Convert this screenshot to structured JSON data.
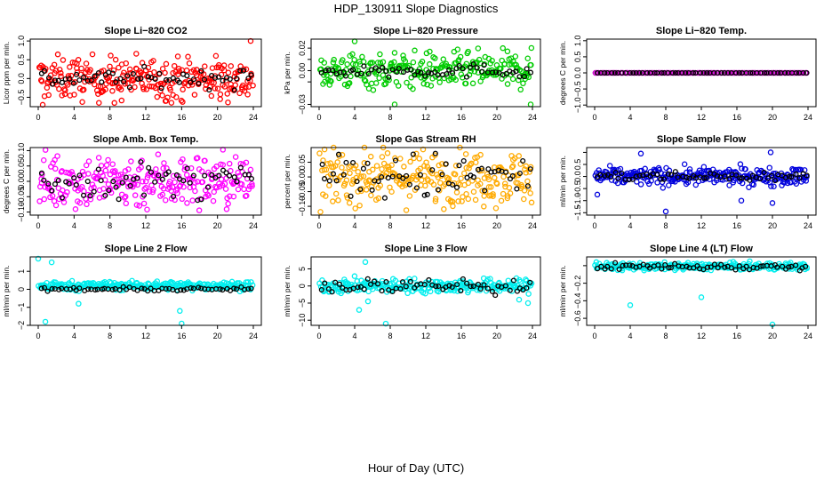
{
  "figure": {
    "title": "HDP_130911  Slope Diagnostics",
    "xlabel": "Hour of Day (UTC)"
  },
  "chart_data": [
    {
      "type": "scatter",
      "title": "Slope Li−820 CO2",
      "ylabel": "Licor ppm per min.",
      "color": "#ff0000",
      "xlim": [
        0,
        24
      ],
      "ylim": [
        -0.75,
        1.05
      ],
      "yticks": [
        -0.5,
        0.0,
        0.5,
        1.0
      ],
      "ytick_labels": [
        "−0.5",
        "0.0",
        "0.5",
        "1.0"
      ],
      "series_center": 0.0,
      "series_spread": 0.28,
      "outliers": [
        [
          23.7,
          1.0
        ],
        [
          0.5,
          -0.7
        ],
        [
          8.5,
          -0.65
        ],
        [
          14.2,
          -0.6
        ],
        [
          20.3,
          -0.55
        ]
      ],
      "black_center": 0.0,
      "black_spread": 0.12
    },
    {
      "type": "scatter",
      "title": "Slope Li−820 Pressure",
      "ylabel": "kPa per min.",
      "color": "#00cc00",
      "xlim": [
        0,
        24
      ],
      "ylim": [
        -0.032,
        0.028
      ],
      "yticks": [
        -0.03,
        -0.01,
        0.0,
        0.01,
        0.02
      ],
      "ytick_labels": [
        "−0.03",
        "",
        "0.00",
        "",
        "0.02"
      ],
      "series_center": 0.0,
      "series_spread": 0.008,
      "outliers": [
        [
          8.5,
          -0.03
        ],
        [
          23.8,
          -0.03
        ],
        [
          4.0,
          0.026
        ]
      ],
      "black_center": 0.0,
      "black_spread": 0.003
    },
    {
      "type": "scatter",
      "title": "Slope Li−820 Temp.",
      "ylabel": "degrees C per min.",
      "color": "#cc00cc",
      "xlim": [
        0,
        24
      ],
      "ylim": [
        -1.05,
        1.05
      ],
      "yticks": [
        -1.0,
        -0.5,
        0.0,
        0.5,
        1.0
      ],
      "ytick_labels": [
        "−1.0",
        "−0.5",
        "0.0",
        "0.5",
        "1.0"
      ],
      "series_center": 0.0,
      "series_spread": 0.0,
      "outliers": [],
      "black_center": 0.0,
      "black_spread": 0.0
    },
    {
      "type": "scatter",
      "title": "Slope Amb. Box Temp.",
      "ylabel": "degrees C per min.",
      "color": "#ff00ff",
      "xlim": [
        0,
        24
      ],
      "ylim": [
        -0.11,
        0.11
      ],
      "yticks": [
        -0.1,
        -0.05,
        0.0,
        0.05,
        0.1
      ],
      "ytick_labels": [
        "−0.10",
        "−0.05",
        "0.00",
        "0.05",
        "0.10"
      ],
      "series_center": 0.0,
      "series_spread": 0.045,
      "outliers": [],
      "black_center": 0.0,
      "black_spread": 0.03
    },
    {
      "type": "scatter",
      "title": "Slope Gas Stream RH",
      "ylabel": "percent per min.",
      "color": "#ffaa00",
      "xlim": [
        0,
        24
      ],
      "ylim": [
        -0.13,
        0.1
      ],
      "yticks": [
        -0.1,
        -0.05,
        0.0,
        0.05
      ],
      "ytick_labels": [
        "−0.10",
        "−0.05",
        "0.00",
        "0.05"
      ],
      "series_center": 0.0,
      "series_spread": 0.045,
      "outliers": [],
      "black_center": 0.0,
      "black_spread": 0.04
    },
    {
      "type": "scatter",
      "title": "Slope Sample Flow",
      "ylabel": "ml/min per min.",
      "color": "#0000dd",
      "xlim": [
        0,
        24
      ],
      "ylim": [
        -1.6,
        1.2
      ],
      "yticks": [
        -1.5,
        -1.0,
        -0.5,
        0.0,
        0.5,
        1.0
      ],
      "ytick_labels": [
        "−1.5",
        "−1.0",
        "−0.5",
        "0.0",
        "0.5",
        ""
      ],
      "series_center": 0.0,
      "series_spread": 0.18,
      "outliers": [
        [
          8.0,
          -1.45
        ],
        [
          5.2,
          0.95
        ],
        [
          19.8,
          1.0
        ],
        [
          16.5,
          -1.0
        ],
        [
          20.0,
          -1.1
        ],
        [
          0.3,
          -0.75
        ]
      ],
      "black_center": 0.0,
      "black_spread": 0.1
    },
    {
      "type": "scatter",
      "title": "Slope Line 2 Flow",
      "ylabel": "ml/min per min.",
      "color": "#00eeee",
      "xlim": [
        0,
        24
      ],
      "ylim": [
        -2.0,
        1.8
      ],
      "yticks": [
        -2,
        -1,
        0,
        1
      ],
      "ytick_labels": [
        "−2",
        "−1",
        "0",
        "1"
      ],
      "series_center": 0.2,
      "series_spread": 0.12,
      "outliers": [
        [
          0.0,
          1.7
        ],
        [
          1.5,
          1.5
        ],
        [
          0.8,
          -1.8
        ],
        [
          16.0,
          -1.9
        ],
        [
          15.8,
          -1.2
        ],
        [
          4.5,
          -0.8
        ]
      ],
      "black_center": 0.0,
      "black_spread": 0.05
    },
    {
      "type": "scatter",
      "title": "Slope Line 3 Flow",
      "ylabel": "ml/min per min.",
      "color": "#00eeee",
      "xlim": [
        0,
        24
      ],
      "ylim": [
        -11.5,
        8.5
      ],
      "yticks": [
        -10,
        -5,
        0,
        5
      ],
      "ytick_labels": [
        "−10",
        "−5",
        "0",
        "5"
      ],
      "series_center": 0.0,
      "series_spread": 1.0,
      "outliers": [
        [
          5.2,
          7.0
        ],
        [
          7.5,
          -11
        ],
        [
          4.5,
          -7
        ],
        [
          5.5,
          -4.5
        ],
        [
          22.5,
          -4
        ],
        [
          23.5,
          -5
        ]
      ],
      "black_center": 0.0,
      "black_spread": 1.4
    },
    {
      "type": "scatter",
      "title": "Slope Line 4 (LT) Flow",
      "ylabel": "ml/min per min.",
      "color": "#00eeee",
      "xlim": [
        0,
        24
      ],
      "ylim": [
        -0.68,
        0.1
      ],
      "yticks": [
        -0.6,
        -0.4,
        -0.2,
        0.0
      ],
      "ytick_labels": [
        "−0.6",
        "−0.4",
        "−0.2",
        ""
      ],
      "series_center": -0.01,
      "series_spread": 0.02,
      "outliers": [
        [
          4.0,
          -0.45
        ],
        [
          12.0,
          -0.36
        ],
        [
          20.0,
          -0.67
        ]
      ],
      "black_center": -0.01,
      "black_spread": 0.02
    }
  ],
  "shared_axis": {
    "xticks": [
      0,
      4,
      8,
      12,
      16,
      20,
      24
    ],
    "xtick_labels": [
      "0",
      "4",
      "8",
      "12",
      "16",
      "20",
      "24"
    ]
  }
}
